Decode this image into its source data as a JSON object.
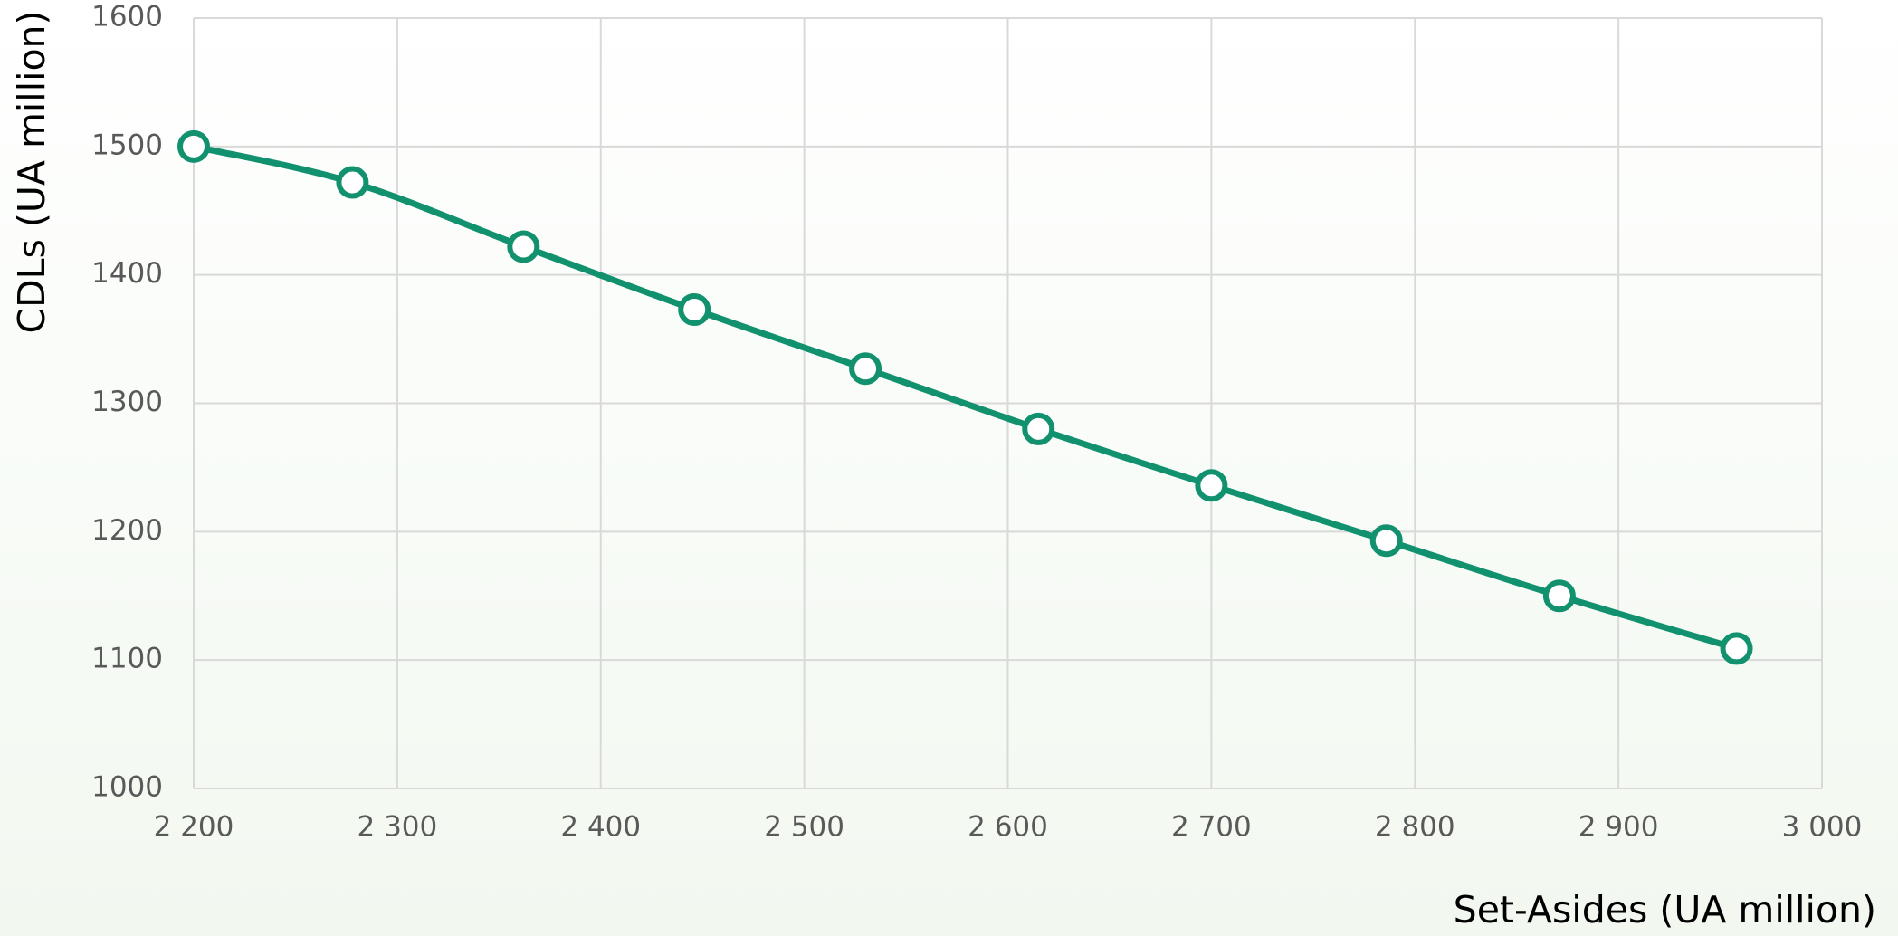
{
  "chart_data": {
    "type": "line",
    "x_label": "Set-Asides (UA million)",
    "y_label": "CDLs (UA million)",
    "x": [
      2200,
      2278,
      2362,
      2446,
      2530,
      2615,
      2700,
      2786,
      2871,
      2958
    ],
    "series": [
      {
        "name": "CDLs",
        "color": "#12916f",
        "values": [
          1500,
          1472,
          1422,
          1373,
          1327,
          1280,
          1236,
          1193,
          1150,
          1109
        ]
      }
    ],
    "xlim": [
      2200,
      3000
    ],
    "xticks": [
      {
        "value": 2200,
        "label": "2 200"
      },
      {
        "value": 2300,
        "label": "2 300"
      },
      {
        "value": 2400,
        "label": "2 400"
      },
      {
        "value": 2500,
        "label": "2 500"
      },
      {
        "value": 2600,
        "label": "2 600"
      },
      {
        "value": 2700,
        "label": "2 700"
      },
      {
        "value": 2800,
        "label": "2 800"
      },
      {
        "value": 2900,
        "label": "2 900"
      },
      {
        "value": 3000,
        "label": "3 000"
      }
    ],
    "ylim": [
      1000,
      1600
    ],
    "yticks": [
      1000,
      1100,
      1200,
      1300,
      1400,
      1500,
      1600
    ],
    "grid": true,
    "smooth": true
  }
}
